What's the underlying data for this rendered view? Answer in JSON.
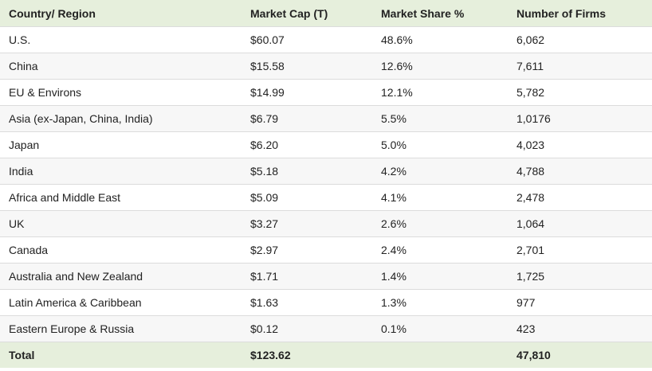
{
  "table": {
    "headers": [
      "Country/ Region",
      "Market Cap (T)",
      "Market Share %",
      "Number of Firms"
    ],
    "rows": [
      [
        "U.S.",
        "$60.07",
        "48.6%",
        "6,062"
      ],
      [
        "China",
        "$15.58",
        "12.6%",
        "7,611"
      ],
      [
        "EU & Environs",
        "$14.99",
        "12.1%",
        "5,782"
      ],
      [
        "Asia (ex-Japan, China, India)",
        "$6.79",
        "5.5%",
        "1,0176"
      ],
      [
        "Japan",
        "$6.20",
        "5.0%",
        "4,023"
      ],
      [
        "India",
        "$5.18",
        "4.2%",
        "4,788"
      ],
      [
        "Africa and Middle East",
        "$5.09",
        "4.1%",
        "2,478"
      ],
      [
        "UK",
        "$3.27",
        "2.6%",
        "1,064"
      ],
      [
        "Canada",
        "$2.97",
        "2.4%",
        "2,701"
      ],
      [
        "Australia and New Zealand",
        "$1.71",
        "1.4%",
        "1,725"
      ],
      [
        "Latin America & Caribbean",
        "$1.63",
        "1.3%",
        "977"
      ],
      [
        "Eastern Europe & Russia",
        "$0.12",
        "0.1%",
        "423"
      ]
    ],
    "total": [
      "Total",
      "$123.62",
      "",
      "47,810"
    ]
  },
  "colors": {
    "header_bg": "#e6efdc",
    "row_alt_bg": "#f7f7f7",
    "border": "#dcdcdc"
  }
}
